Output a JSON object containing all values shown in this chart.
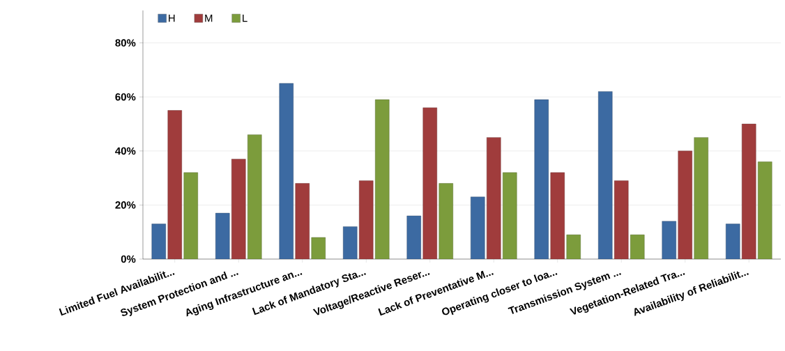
{
  "chart_data": {
    "type": "bar",
    "categories": [
      "Limited Fuel Availabilit...",
      "System Protection and ...",
      "Aging Infrastructure an...",
      "Lack of Mandatory Sta...",
      "Voltage/Reactive Reser...",
      "Lack of Preventative M...",
      "Operating closer to loa...",
      "Transmission System ...",
      "Vegetation-Related Tra...",
      "Availability of Reliabilit..."
    ],
    "series": [
      {
        "name": "H",
        "color": "#3c6aa2",
        "values": [
          13,
          17,
          65,
          12,
          16,
          23,
          59,
          62,
          14,
          13
        ]
      },
      {
        "name": "M",
        "color": "#a03c3c",
        "values": [
          55,
          37,
          28,
          29,
          56,
          45,
          32,
          29,
          40,
          50
        ]
      },
      {
        "name": "L",
        "color": "#7c9c3c",
        "values": [
          32,
          46,
          8,
          59,
          28,
          32,
          9,
          9,
          45,
          36
        ]
      }
    ],
    "ylim": [
      0,
      92
    ],
    "yticks": [
      {
        "value": 0,
        "label": "0%"
      },
      {
        "value": 20,
        "label": "20%"
      },
      {
        "value": 40,
        "label": "40%"
      },
      {
        "value": 60,
        "label": "60%"
      },
      {
        "value": 80,
        "label": "80%"
      }
    ],
    "grid": "y",
    "legend": "top left"
  }
}
